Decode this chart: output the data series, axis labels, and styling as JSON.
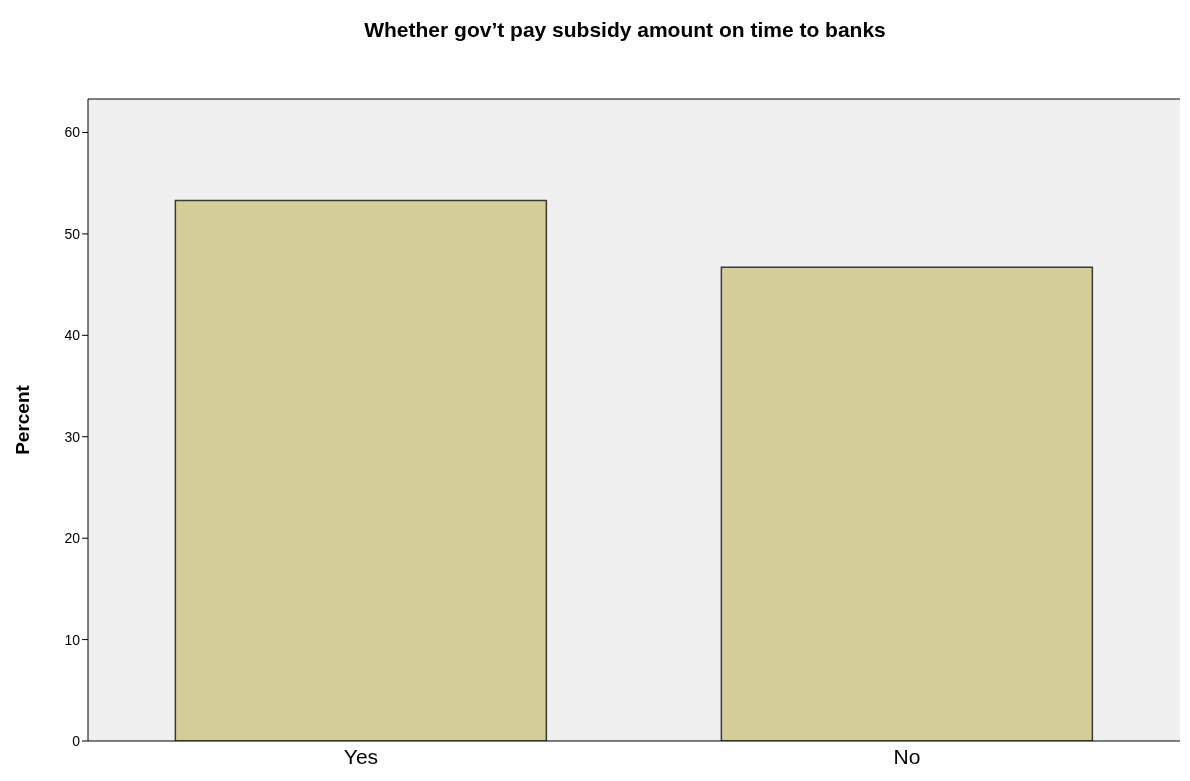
{
  "chart_data": {
    "type": "bar",
    "title": "Whether gov’t pay subsidy amount on time to banks",
    "ylabel": "Percent",
    "categories": [
      "Yes",
      "No"
    ],
    "values": [
      53.3,
      46.7
    ],
    "color": "#d3ce97",
    "ylim": [
      0,
      63.3
    ],
    "yticks": [
      0,
      10,
      20,
      30,
      40,
      50,
      60
    ],
    "grid": false
  }
}
